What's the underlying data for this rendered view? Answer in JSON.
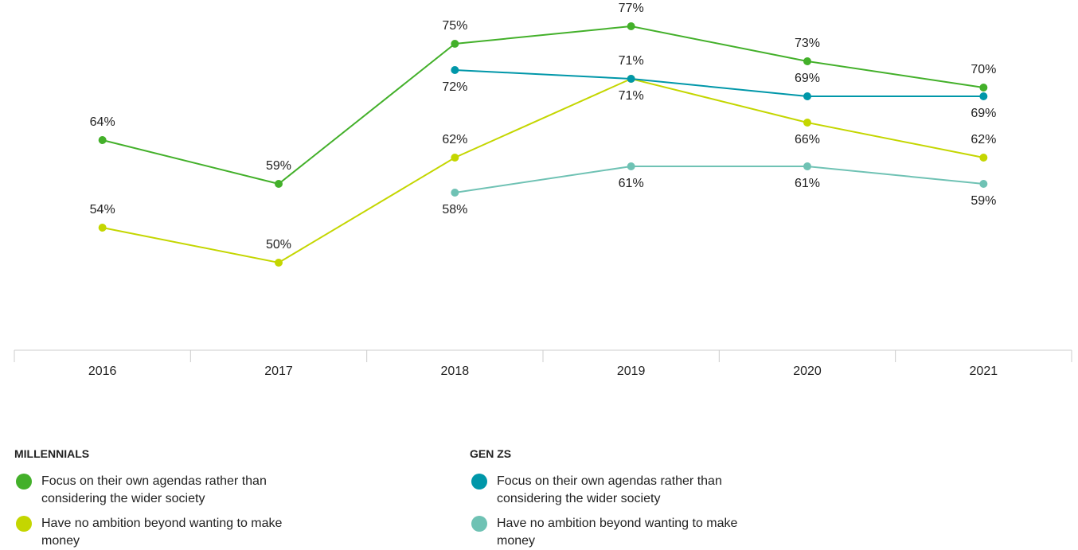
{
  "chart_data": {
    "type": "line",
    "categories": [
      "2016",
      "2017",
      "2018",
      "2019",
      "2020",
      "2021"
    ],
    "ylim": [
      40,
      80
    ],
    "legend_groups": [
      "MILLENNIALS",
      "GEN ZS"
    ],
    "series": [
      {
        "name": "Focus on their own agendas rather than considering the wider society",
        "group": "MILLENNIALS",
        "color": "#43b02a",
        "values": [
          64,
          59,
          75,
          77,
          73,
          70
        ],
        "value_labels": [
          "64%",
          "59%",
          "75%",
          "77%",
          "73%",
          "70%"
        ]
      },
      {
        "name": "Have no ambition beyond wanting to make money",
        "group": "MILLENNIALS",
        "color": "#c4d600",
        "values": [
          54,
          50,
          62,
          71,
          66,
          62
        ],
        "value_labels": [
          "54%",
          "50%",
          "62%",
          "71%",
          "66%",
          "62%"
        ]
      },
      {
        "name": "Focus on their own agendas rather than considering the wider society",
        "group": "GEN ZS",
        "color": "#0097a9",
        "values": [
          null,
          null,
          72,
          71,
          69,
          69
        ],
        "value_labels": [
          null,
          null,
          "72%",
          "71%",
          "69%",
          "69%"
        ]
      },
      {
        "name": "Have no ambition beyond wanting to make money",
        "group": "GEN ZS",
        "color": "#6fc2b4",
        "values": [
          null,
          null,
          58,
          61,
          61,
          59
        ],
        "value_labels": [
          null,
          null,
          "58%",
          "61%",
          "61%",
          "59%"
        ]
      }
    ]
  }
}
